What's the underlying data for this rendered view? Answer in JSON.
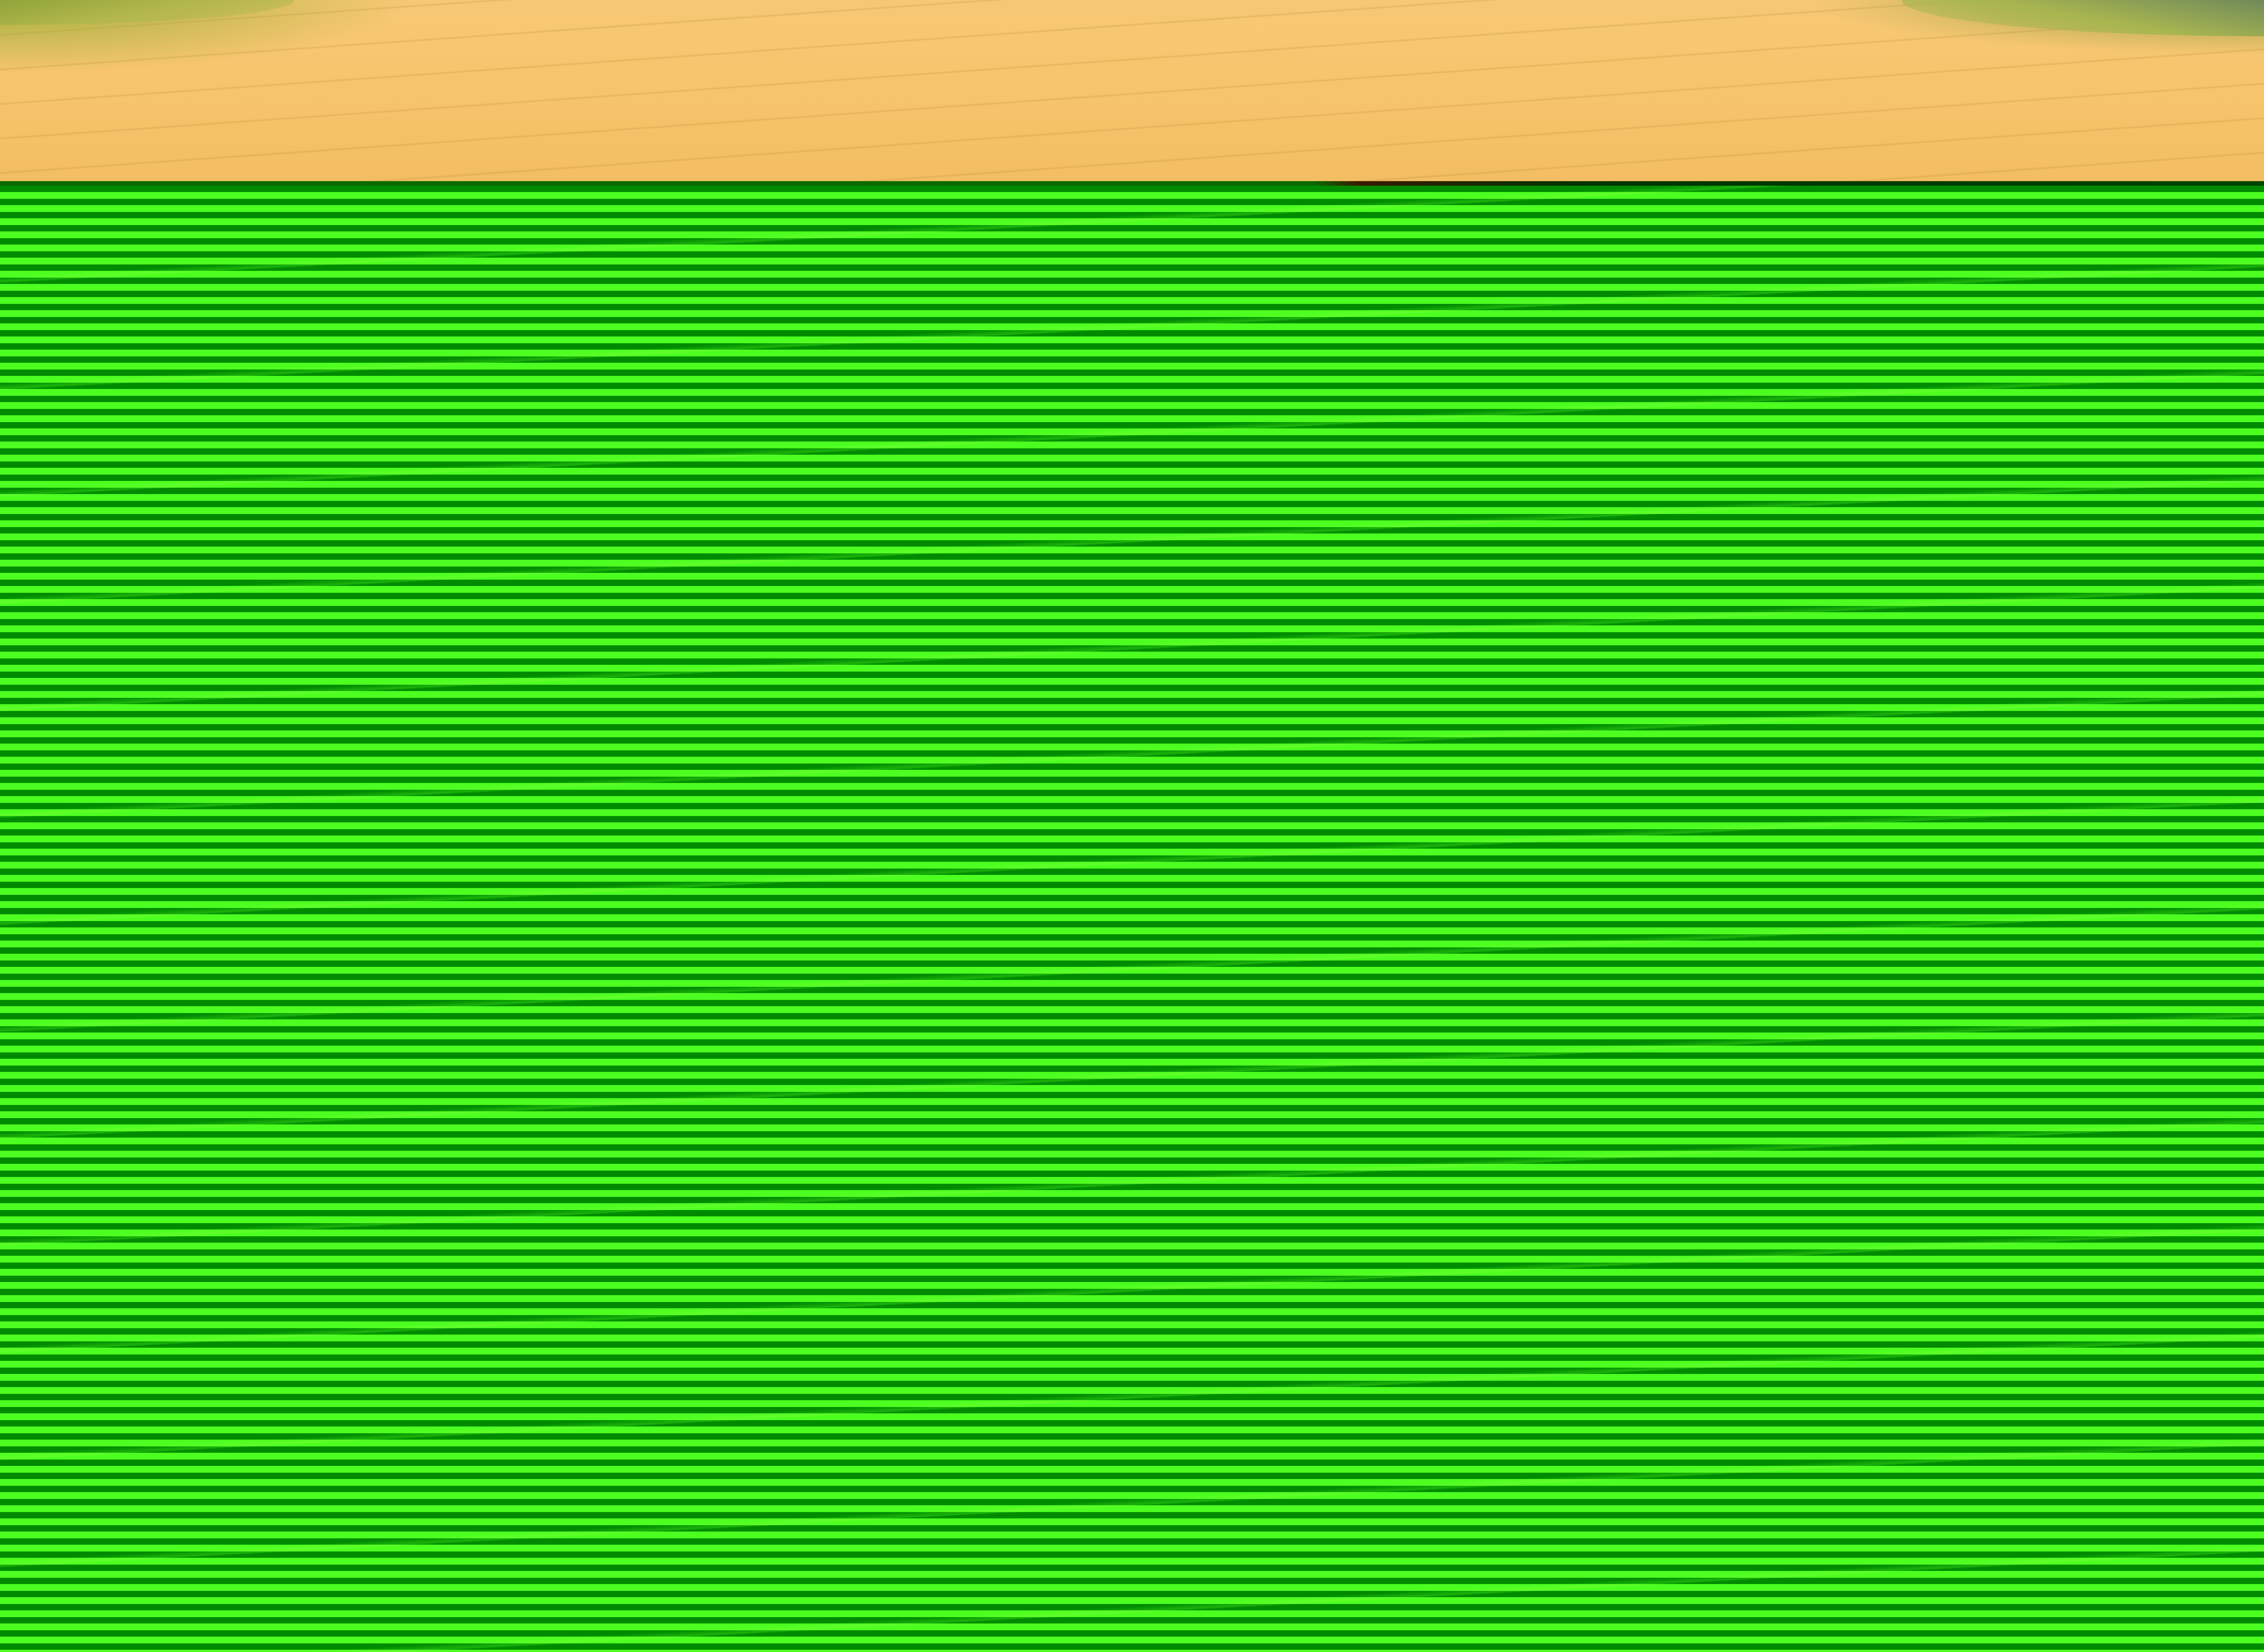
{
  "image": {
    "description_tag": "wheat-field-photo",
    "colors": {
      "wheat": "#f6c36a",
      "tree_line": "#9fae3a",
      "stripe_dark": "#008a00",
      "stripe_light": "#4cff20"
    }
  }
}
